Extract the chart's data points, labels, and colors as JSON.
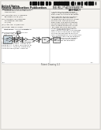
{
  "bg_color": "#e8e4de",
  "page_bg": "#f5f3ef",
  "barcode_color": "#111111",
  "text_color": "#222222",
  "gray_text": "#555555",
  "line_color": "#444444",
  "diagram_bg": "#f8f7f5",
  "box_fill": "#eeeeee",
  "header": {
    "line1": "United States",
    "line2": "Patent Application Publication",
    "line3": "Samuels",
    "pub_no": "Pub. No.: US 2010/0027491 A1",
    "pub_date": "Pub. Date:    Mar. 11, 2010"
  },
  "left_col": [
    "(54) THULIUM LASER PUMPED MID-IR",
    "      SOURCE WITH MULTI-SPECTRAL",
    "      LINE OUTPUT",
    "",
    "(75) Inventor: John T. Samuels,",
    "      Bernardsville, NJ (US)",
    "",
    "(73) Assignee: JDS Uniphase",
    "      Corporation, San Jose,",
    "      CA (US)",
    "",
    "(21) Appl. No.: 12/455,072",
    "",
    "(22) Filed:  May 27, 2009",
    "",
    "     Related U.S. Application Data",
    "",
    "(60) Provisional application No.",
    "     61/055,931, filed on",
    "     May 23, 2008.",
    "",
    "(56)  References Cited",
    "",
    "  U.S. PATENT DOCUMENTS",
    "5,005,175 A  4/1991  Bruesselbach",
    "5,200,966 A  4/1993  Antipov et al.",
    "5,880,877 A  3/1999  Fermann et al.",
    "6,154,321 A  11/2000 Arbore et al.",
    "7,050,461 B2 5/2006  Clarkson"
  ],
  "abstract_lines": [
    "                  ABSTRACT",
    "",
    "A Thulium (Tm) fiber or bulk",
    "laser is used to pump a fluoride",
    "glass fiber or crystal to generate",
    "mid-infrared (mid-IR) radiation.",
    "The output of the Tm laser is",
    "coupled through a dichroic beam",
    "splitter and into the fluoride",
    "glass fiber. The output consists",
    "of multiple spectral lines in the",
    "mid-IR region spanning 2-5 um.",
    "This laser source is useful for",
    "chemical sensing and medical",
    "applications. The Tm laser pumped",
    "mid-IR source provides a compact",
    "solution for generating multiple",
    "mid-IR wavelengths simultaneously.",
    "The spectral lines can be selected",
    "and the system can be tunable.",
    "Various fiber and bulk crystal",
    "configurations are disclosed."
  ],
  "fig_caption": "Patent Drawing 1/2"
}
